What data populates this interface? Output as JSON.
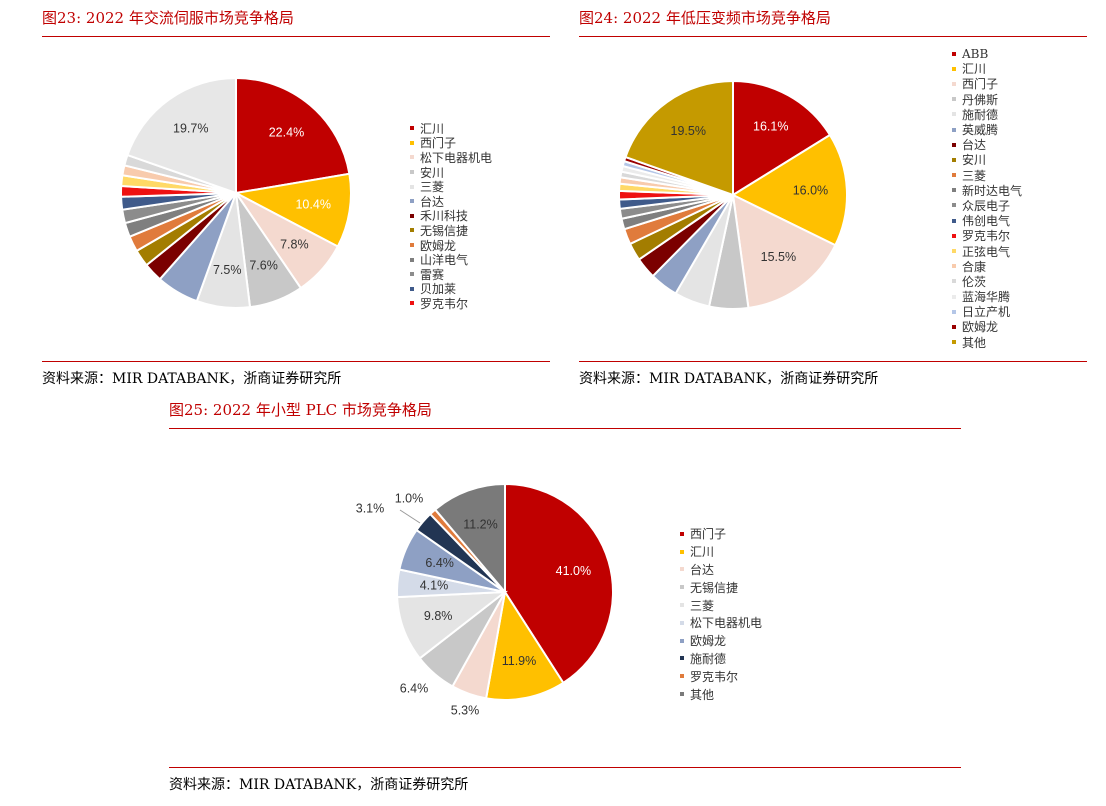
{
  "figures": [
    {
      "title": "图23:  2022 年交流伺服市场竞争格局",
      "source": "资料来源：MIR DATABANK，浙商证券研究所"
    },
    {
      "title": "图24:  2022 年低压变频市场竞争格局",
      "source": "资料来源：MIR DATABANK，浙商证券研究所"
    },
    {
      "title": "图25:  2022 年小型 PLC 市场竞争格局",
      "source": "资料来源：MIR DATABANK，浙商证券研究所"
    }
  ],
  "chart_data": [
    {
      "type": "pie",
      "title": "2022 年交流伺服市场竞争格局",
      "legend_position": "right",
      "slices": [
        {
          "label": "汇川",
          "value": 22.4,
          "data_label": "22.4%",
          "color": "#c00000"
        },
        {
          "label": "西门子",
          "value": 10.4,
          "data_label": "10.4%",
          "color": "#ffc000"
        },
        {
          "label": "松下电器机电",
          "value": 7.8,
          "data_label": "7.8%",
          "color": "#f4d9cf"
        },
        {
          "label": "安川",
          "value": 7.6,
          "data_label": "7.6%",
          "color": "#c8c8c8"
        },
        {
          "label": "三菱",
          "value": 7.5,
          "data_label": "7.5%",
          "color": "#e4e4e4"
        },
        {
          "label": "台达",
          "value": 6.0,
          "color": "#8ea0c4"
        },
        {
          "label": "禾川科技",
          "value": 2.7,
          "color": "#7b0000"
        },
        {
          "label": "无锡信捷",
          "value": 2.4,
          "color": "#a37d00"
        },
        {
          "label": "欧姆龙",
          "value": 2.2,
          "color": "#e07b3c"
        },
        {
          "label": "山洋电气",
          "value": 2.0,
          "color": "#7f7f7f"
        },
        {
          "label": "雷赛",
          "value": 1.9,
          "color": "#8c8c8c"
        },
        {
          "label": "贝加莱",
          "value": 1.8,
          "color": "#3f5a8a"
        },
        {
          "label": "罗克韦尔",
          "value": 1.5,
          "color": "#ee1111"
        },
        {
          "label": "",
          "value": 1.5,
          "color": "#ffd966"
        },
        {
          "label": "",
          "value": 1.4,
          "color": "#f8cbad"
        },
        {
          "label": "",
          "value": 1.5,
          "color": "#d9d9d9"
        },
        {
          "label": "",
          "value": 19.7,
          "data_label": "19.7%",
          "color": "#e7e7e7"
        }
      ]
    },
    {
      "type": "pie",
      "title": "2022 年低压变频市场竞争格局",
      "legend_position": "right",
      "slices": [
        {
          "label": "ABB",
          "value": 16.1,
          "data_label": "16.1%",
          "color": "#c00000"
        },
        {
          "label": "汇川",
          "value": 16.0,
          "data_label": "16.0%",
          "color": "#ffc000"
        },
        {
          "label": "西门子",
          "value": 15.5,
          "data_label": "15.5%",
          "color": "#f4d9cf"
        },
        {
          "label": "丹佛斯",
          "value": 5.5,
          "color": "#c8c8c8"
        },
        {
          "label": "施耐德",
          "value": 5.0,
          "color": "#e4e4e4"
        },
        {
          "label": "英威腾",
          "value": 4.0,
          "color": "#8ea0c4"
        },
        {
          "label": "台达",
          "value": 3.0,
          "color": "#7b0000"
        },
        {
          "label": "安川",
          "value": 2.5,
          "color": "#a37d00"
        },
        {
          "label": "三菱",
          "value": 2.2,
          "color": "#e07b3c"
        },
        {
          "label": "新时达电气",
          "value": 1.5,
          "color": "#7f7f7f"
        },
        {
          "label": "众辰电子",
          "value": 1.4,
          "color": "#8c8c8c"
        },
        {
          "label": "伟创电气",
          "value": 1.3,
          "color": "#3f5a8a"
        },
        {
          "label": "罗克韦尔",
          "value": 1.2,
          "color": "#ee1111"
        },
        {
          "label": "正弦电气",
          "value": 1.0,
          "color": "#ffd966"
        },
        {
          "label": "合康",
          "value": 0.9,
          "color": "#f8cbad"
        },
        {
          "label": "伦茨",
          "value": 0.8,
          "color": "#d9d9d9"
        },
        {
          "label": "蓝海华腾",
          "value": 0.8,
          "color": "#ebebeb"
        },
        {
          "label": "日立产机",
          "value": 0.7,
          "color": "#b4c6e7"
        },
        {
          "label": "欧姆龙",
          "value": 0.6,
          "color": "#990000"
        },
        {
          "label": "其他",
          "value": 19.5,
          "data_label": "19.5%",
          "color": "#c59a00"
        }
      ]
    },
    {
      "type": "pie",
      "title": "2022 年小型 PLC 市场竞争格局",
      "legend_position": "right",
      "slices": [
        {
          "label": "西门子",
          "value": 41.0,
          "data_label": "41.0%",
          "color": "#c00000"
        },
        {
          "label": "汇川",
          "value": 11.9,
          "data_label": "11.9%",
          "color": "#ffc000"
        },
        {
          "label": "台达",
          "value": 5.3,
          "data_label": "5.3%",
          "color": "#f4d9cf"
        },
        {
          "label": "无锡信捷",
          "value": 6.4,
          "data_label": "6.4%",
          "color": "#c8c8c8"
        },
        {
          "label": "三菱",
          "value": 9.8,
          "data_label": "9.8%",
          "color": "#e4e4e4"
        },
        {
          "label": "松下电器机电",
          "value": 4.1,
          "data_label": "4.1%",
          "color": "#d4dbe8"
        },
        {
          "label": "欧姆龙",
          "value": 6.4,
          "data_label": "6.4%",
          "color": "#8ea0c4"
        },
        {
          "label": "施耐德",
          "value": 3.1,
          "data_label": "3.1%",
          "color": "#223553"
        },
        {
          "label": "罗克韦尔",
          "value": 1.0,
          "data_label": "1.0%",
          "color": "#e07b3c"
        },
        {
          "label": "其他",
          "value": 11.2,
          "data_label": "11.2%",
          "color": "#7a7a7a"
        }
      ]
    }
  ]
}
